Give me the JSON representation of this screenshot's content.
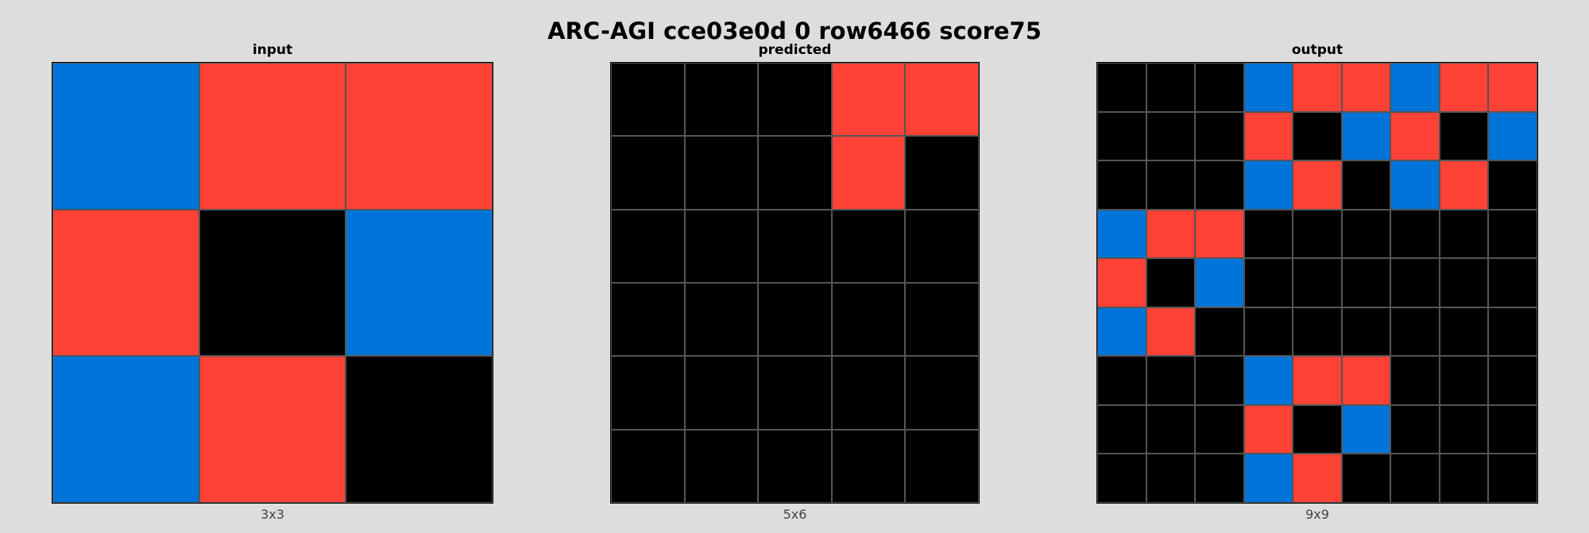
{
  "title": "ARC-AGI cce03e0d 0 row6466 score75",
  "palette": {
    "0": "#000000",
    "1": "#0074d9",
    "2": "#ff4136"
  },
  "panels": [
    {
      "title": "input",
      "caption": "3x3",
      "grid": [
        [
          1,
          2,
          2
        ],
        [
          2,
          0,
          1
        ],
        [
          1,
          2,
          0
        ]
      ]
    },
    {
      "title": "predicted",
      "caption": "5x6",
      "grid": [
        [
          0,
          0,
          0,
          2,
          2
        ],
        [
          0,
          0,
          0,
          2,
          0
        ],
        [
          0,
          0,
          0,
          0,
          0
        ],
        [
          0,
          0,
          0,
          0,
          0
        ],
        [
          0,
          0,
          0,
          0,
          0
        ],
        [
          0,
          0,
          0,
          0,
          0
        ]
      ]
    },
    {
      "title": "output",
      "caption": "9x9",
      "grid": [
        [
          0,
          0,
          0,
          1,
          2,
          2,
          1,
          2,
          2
        ],
        [
          0,
          0,
          0,
          2,
          0,
          1,
          2,
          0,
          1
        ],
        [
          0,
          0,
          0,
          1,
          2,
          0,
          1,
          2,
          0
        ],
        [
          1,
          2,
          2,
          0,
          0,
          0,
          0,
          0,
          0
        ],
        [
          2,
          0,
          1,
          0,
          0,
          0,
          0,
          0,
          0
        ],
        [
          1,
          2,
          0,
          0,
          0,
          0,
          0,
          0,
          0
        ],
        [
          0,
          0,
          0,
          1,
          2,
          2,
          0,
          0,
          0
        ],
        [
          0,
          0,
          0,
          2,
          0,
          1,
          0,
          0,
          0
        ],
        [
          0,
          0,
          0,
          1,
          2,
          0,
          0,
          0,
          0
        ]
      ]
    }
  ]
}
